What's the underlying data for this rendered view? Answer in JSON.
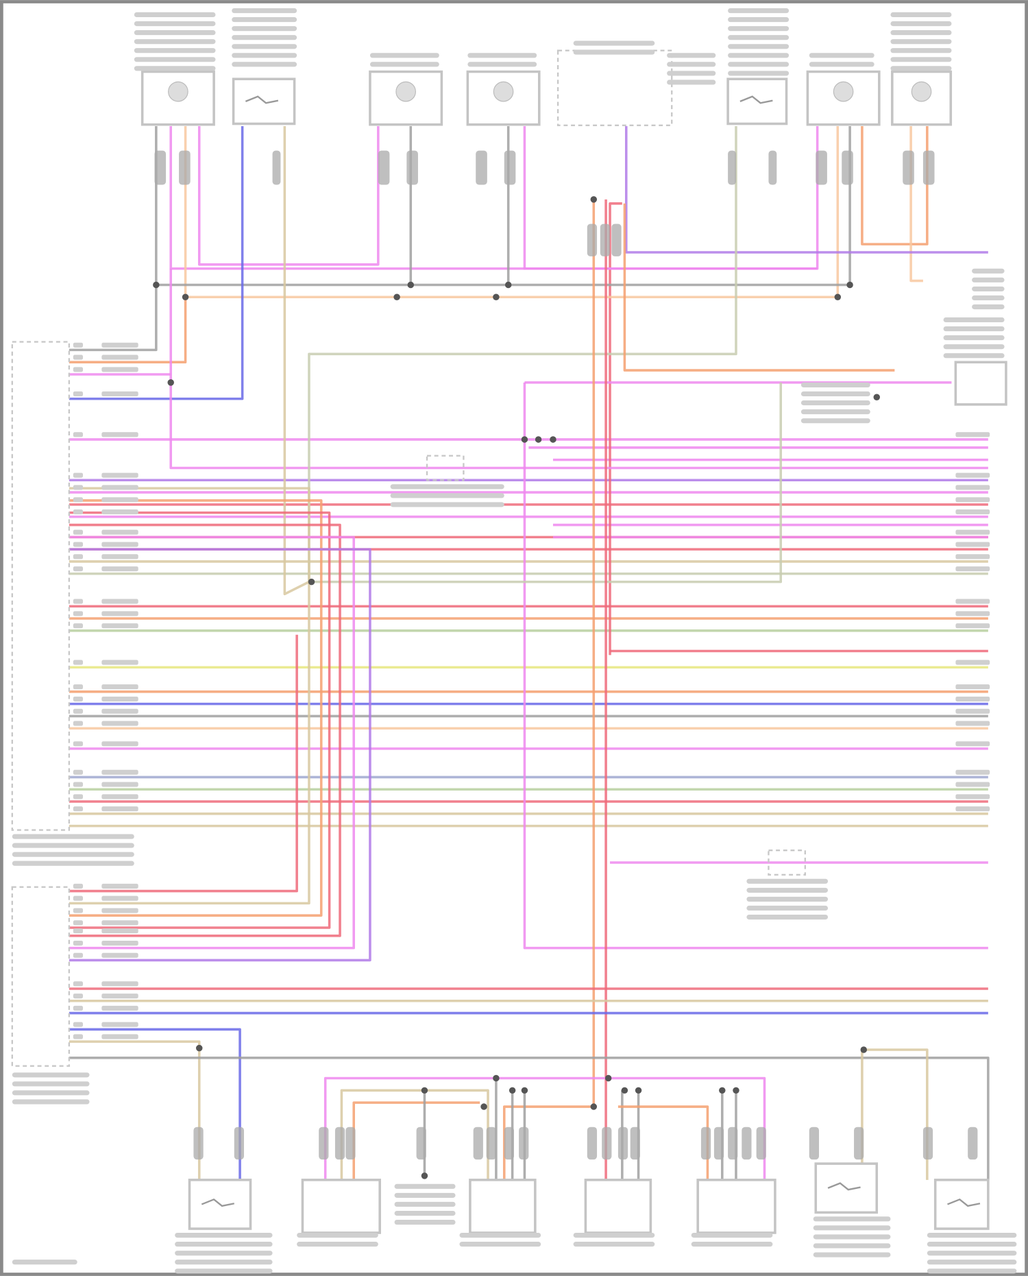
{
  "wire_colors": {
    "pink": "#ee88ee",
    "violet": "#b07ae8",
    "blue": "#6a6ae8",
    "red": "#ee6a7a",
    "orange": "#f4a070",
    "peach": "#f8c8a0",
    "tan": "#d8c8a0",
    "gray": "#a0a0a0",
    "graygreen": "#c8ccb0",
    "green": "#b8d0a0",
    "yellow": "#e8e880",
    "bluegray": "#a0a8d0"
  },
  "frame_color": "#8a8a8a"
}
